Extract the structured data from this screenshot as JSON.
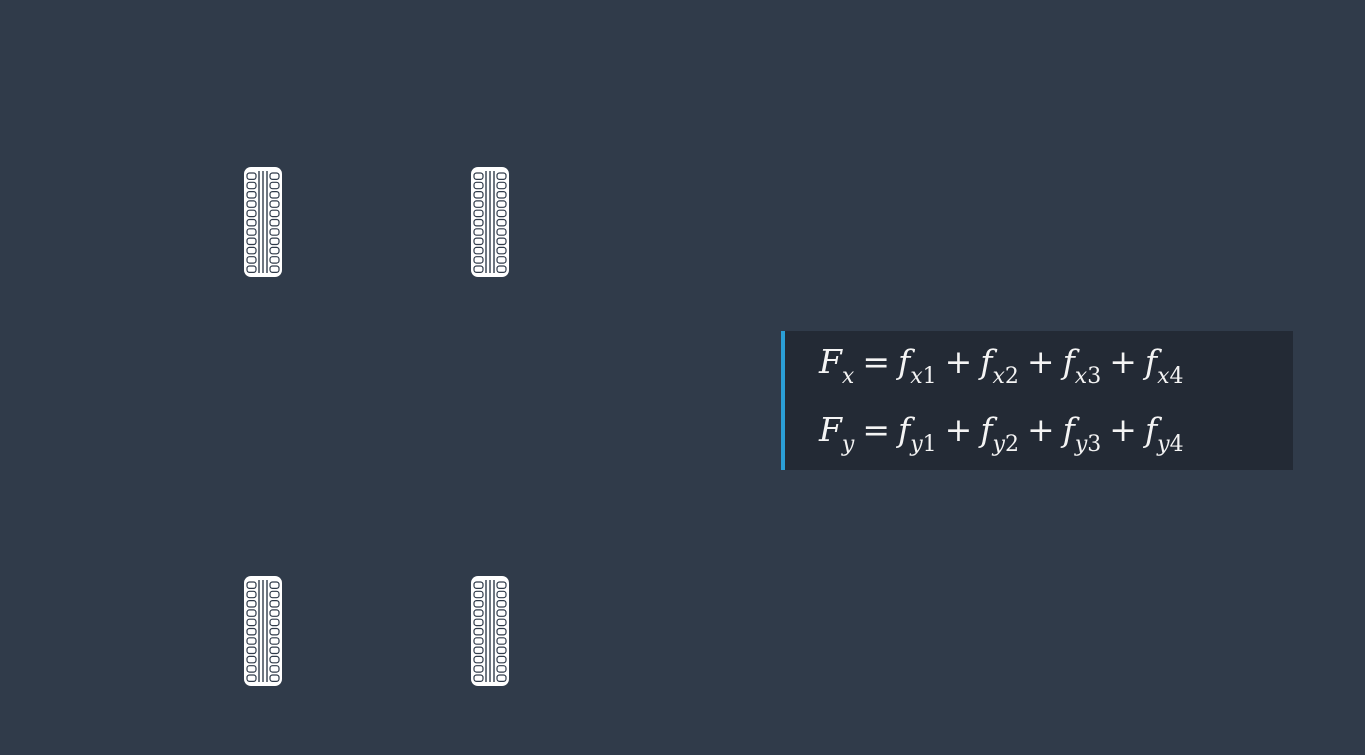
{
  "colors": {
    "background": "#303b4a",
    "panel": "#232a35",
    "accent": "#2b9fd6",
    "text": "#f4f4f4",
    "tire": "#ffffff"
  },
  "tires": [
    {
      "name": "front-left-tire",
      "icon": "tire-icon"
    },
    {
      "name": "front-right-tire",
      "icon": "tire-icon"
    },
    {
      "name": "rear-left-tire",
      "icon": "tire-icon"
    },
    {
      "name": "rear-right-tire",
      "icon": "tire-icon"
    }
  ],
  "equations": [
    {
      "lhs": {
        "symbol": "F",
        "sub": "x"
      },
      "equals": "=",
      "plus": "+",
      "terms": [
        {
          "symbol": "f",
          "sub_var": "x",
          "sub_num": "1"
        },
        {
          "symbol": "f",
          "sub_var": "x",
          "sub_num": "2"
        },
        {
          "symbol": "f",
          "sub_var": "x",
          "sub_num": "3"
        },
        {
          "symbol": "f",
          "sub_var": "x",
          "sub_num": "4"
        }
      ]
    },
    {
      "lhs": {
        "symbol": "F",
        "sub": "y"
      },
      "equals": "=",
      "plus": "+",
      "terms": [
        {
          "symbol": "f",
          "sub_var": "y",
          "sub_num": "1"
        },
        {
          "symbol": "f",
          "sub_var": "y",
          "sub_num": "2"
        },
        {
          "symbol": "f",
          "sub_var": "y",
          "sub_num": "3"
        },
        {
          "symbol": "f",
          "sub_var": "y",
          "sub_num": "4"
        }
      ]
    }
  ]
}
